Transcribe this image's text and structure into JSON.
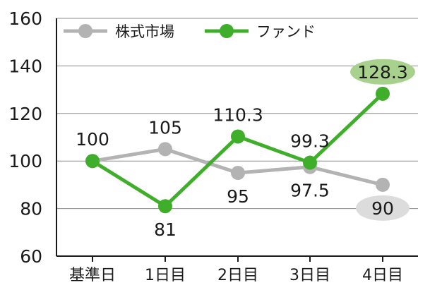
{
  "chart_data": {
    "type": "line",
    "title": "",
    "xlabel": "",
    "ylabel": "",
    "ylim": [
      60,
      160
    ],
    "y_ticks": [
      60,
      80,
      100,
      120,
      140,
      160
    ],
    "grid": true,
    "legend_placement": "top-left",
    "categories": [
      "基準日",
      "1日目",
      "2日目",
      "3日目",
      "4日目"
    ],
    "series": [
      {
        "name": "株式市場",
        "color": "#b3b3b3",
        "values": [
          100,
          105,
          95,
          97.5,
          90
        ],
        "labels": [
          "100",
          "105",
          "95",
          "97.5",
          "90"
        ],
        "label_position": [
          "above",
          "above",
          "below",
          "below",
          "below"
        ],
        "highlight_last": true,
        "highlight_color": "#dcdcdc"
      },
      {
        "name": "ファンド",
        "color": "#3fae2a",
        "values": [
          100,
          81,
          110.3,
          99.3,
          128.3
        ],
        "labels": [
          "",
          "81",
          "110.3",
          "99.3",
          "128.3"
        ],
        "label_position": [
          "none",
          "below",
          "above",
          "above",
          "above"
        ],
        "highlight_last": true,
        "highlight_color": "#a9d18e"
      }
    ]
  }
}
